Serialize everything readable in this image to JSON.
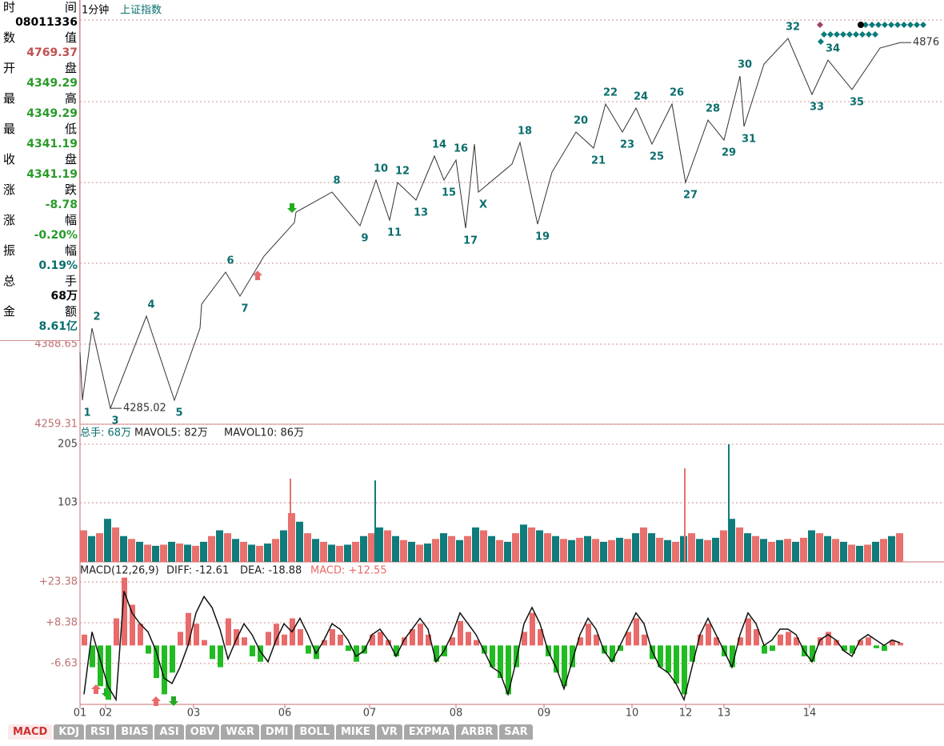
{
  "header": {
    "period": "1分钟",
    "symbol": "上证指数"
  },
  "info_panel": {
    "rows": [
      {
        "label": "时间",
        "value": "08011336",
        "color": "#000000"
      },
      {
        "label": "数值",
        "value": "4769.37",
        "color": "#c05050"
      },
      {
        "label": "开盘",
        "value": "4349.29",
        "color": "#2a9a2a"
      },
      {
        "label": "最高",
        "value": "4349.29",
        "color": "#2a9a2a"
      },
      {
        "label": "最低",
        "value": "4341.19",
        "color": "#2a9a2a"
      },
      {
        "label": "收盘",
        "value": "4341.19",
        "color": "#2a9a2a"
      },
      {
        "label": "涨跌",
        "value": "-8.78",
        "color": "#2a9a2a"
      },
      {
        "label": "涨幅",
        "value": "-0.20%",
        "color": "#2a9a2a"
      },
      {
        "label": "振幅",
        "value": "0.19%",
        "color": "#0a6e6e"
      },
      {
        "label": "总手",
        "value": "68万",
        "color": "#000000"
      },
      {
        "label": "金额",
        "value": "8.61亿",
        "color": "#0a6e6e"
      }
    ]
  },
  "chart_data": [
    {
      "type": "line",
      "color": "#333333",
      "label_color": "#0a6e6e",
      "x": [
        0,
        3,
        15,
        38,
        83,
        118,
        150,
        152,
        182,
        200,
        230,
        268,
        270,
        315,
        350,
        370,
        387,
        397,
        420,
        443,
        455,
        470,
        482,
        493,
        498,
        540,
        550,
        572,
        590,
        620,
        642,
        657,
        678,
        695,
        715,
        740,
        757,
        785,
        805,
        825,
        830,
        855,
        885,
        915,
        935,
        965,
        1000,
        1025
      ],
      "values": [
        4375.7,
        4298.1,
        4414.5,
        4285.02,
        4433.9,
        4298.1,
        4414.5,
        4453.3,
        4505.1,
        4466.3,
        4530.9,
        4585.2,
        4602.0,
        4634.4,
        4580.0,
        4653.8,
        4589.1,
        4649.9,
        4621.5,
        4692.6,
        4653.8,
        4686.1,
        4576.2,
        4712.0,
        4634.4,
        4679.7,
        4714.6,
        4582.7,
        4666.7,
        4731.4,
        4705.5,
        4776.7,
        4731.4,
        4770.2,
        4712.0,
        4776.7,
        4649.9,
        4750.8,
        4718.5,
        4821.9,
        4740.5,
        4841.3,
        4882.7,
        4792.2,
        4847.8,
        4800.0,
        4867.2,
        4876
      ],
      "point_labels": [
        null,
        "1",
        "2",
        "3",
        "4",
        "5",
        null,
        null,
        "6",
        "7",
        null,
        null,
        null,
        "8",
        "9",
        "10",
        "11",
        "12",
        "13",
        "14",
        "15",
        "16",
        "17",
        null,
        "X",
        null,
        "18",
        "19",
        null,
        "20",
        "21",
        "22",
        "23",
        "24",
        "25",
        "26",
        "27",
        "28",
        "29",
        "30",
        "31",
        null,
        "32",
        "33",
        "34",
        "35",
        null,
        null
      ],
      "value_labels": [
        null,
        null,
        null,
        "4285.02",
        null,
        null,
        null,
        null,
        null,
        null,
        null,
        null,
        null,
        null,
        null,
        null,
        null,
        null,
        null,
        null,
        null,
        null,
        null,
        null,
        null,
        null,
        null,
        null,
        null,
        null,
        null,
        null,
        null,
        null,
        null,
        null,
        null,
        null,
        null,
        null,
        null,
        null,
        null,
        null,
        null,
        null,
        null,
        "4876"
      ],
      "xlim": [
        0,
        1080
      ],
      "xticks": [
        {
          "value": 0,
          "label": "01"
        },
        {
          "value": 32,
          "label": "02"
        },
        {
          "value": 142,
          "label": "03"
        },
        {
          "value": 256,
          "label": "06"
        },
        {
          "value": 362,
          "label": "07"
        },
        {
          "value": 470,
          "label": "08"
        },
        {
          "value": 580,
          "label": "09"
        },
        {
          "value": 690,
          "label": "10"
        },
        {
          "value": 757,
          "label": "12"
        },
        {
          "value": 805,
          "label": "13"
        },
        {
          "value": 912,
          "label": "14"
        }
      ],
      "ylim": [
        4259.31,
        4938.35
      ],
      "yticks": [
        4259.31,
        4388.65
      ]
    },
    {
      "type": "bar",
      "header": [
        "总手: 68万",
        "MAVOL5: 82万",
        "MAVOL10: 86万"
      ],
      "colors": [
        "#e8716d",
        "#0e7c7b"
      ],
      "values": [
        55,
        45,
        50,
        75,
        60,
        45,
        40,
        35,
        30,
        28,
        30,
        35,
        32,
        30,
        28,
        35,
        45,
        55,
        50,
        40,
        35,
        30,
        28,
        32,
        40,
        55,
        85,
        70,
        50,
        40,
        35,
        30,
        28,
        30,
        35,
        45,
        50,
        60,
        55,
        45,
        38,
        35,
        30,
        32,
        40,
        50,
        45,
        38,
        45,
        60,
        55,
        45,
        38,
        35,
        50,
        65,
        60,
        55,
        50,
        45,
        40,
        38,
        42,
        45,
        40,
        35,
        38,
        42,
        40,
        50,
        60,
        50,
        42,
        38,
        35,
        45,
        50,
        40,
        38,
        42,
        55,
        75,
        60,
        50,
        45,
        40,
        35,
        38,
        40,
        35,
        42,
        55,
        50,
        45,
        40,
        35,
        30,
        28,
        30,
        35,
        40,
        45,
        50
      ],
      "spike_x": [
        262,
        368,
        755,
        810
      ],
      "spike_values": [
        145,
        142,
        163,
        205
      ],
      "ylim": [
        0,
        237
      ],
      "yticks": [
        103,
        205
      ]
    },
    {
      "type": "bar",
      "header": [
        "MACD(12,26,9)",
        "DIFF: -12.61",
        "DEA: -18.88",
        "MACD: +12.55"
      ],
      "up_color": "#e86a6a",
      "down_color": "#22bb22",
      "line_color": "#111111",
      "values": [
        4,
        -8,
        -15,
        -20,
        10,
        25,
        15,
        8,
        -3,
        -12,
        -18,
        -10,
        5,
        12,
        8,
        2,
        -5,
        -8,
        10,
        6,
        3,
        -4,
        -6,
        5,
        8,
        4,
        10,
        6,
        -3,
        -5,
        2,
        6,
        4,
        -2,
        -6,
        -3,
        4,
        5,
        2,
        -4,
        3,
        6,
        8,
        4,
        -6,
        -4,
        3,
        9,
        5,
        2,
        -3,
        -8,
        -12,
        -18,
        -8,
        5,
        12,
        6,
        -4,
        -10,
        -15,
        -8,
        3,
        8,
        4,
        -3,
        -6,
        -2,
        5,
        10,
        4,
        -5,
        -8,
        -10,
        -14,
        -18,
        -6,
        4,
        8,
        3,
        -4,
        -8,
        3,
        10,
        6,
        -3,
        -2,
        4,
        5,
        3,
        -4,
        -6,
        3,
        5,
        2,
        -2,
        -3,
        2,
        3,
        -1,
        -2,
        2,
        1
      ],
      "diff": [
        -18,
        5,
        -5,
        -15,
        -20,
        20,
        12,
        8,
        5,
        -2,
        -12,
        -14,
        -8,
        0,
        12,
        18,
        14,
        6,
        -5,
        2,
        8,
        4,
        -2,
        -6,
        2,
        8,
        5,
        10,
        4,
        -3,
        2,
        8,
        6,
        2,
        -4,
        -2,
        4,
        6,
        2,
        -4,
        2,
        6,
        10,
        6,
        -6,
        -2,
        4,
        12,
        8,
        4,
        -2,
        -8,
        -10,
        -18,
        -6,
        8,
        14,
        8,
        -2,
        -8,
        -16,
        -6,
        4,
        10,
        6,
        -2,
        -6,
        0,
        6,
        12,
        8,
        -2,
        -8,
        -10,
        -14,
        -20,
        -8,
        4,
        10,
        4,
        -2,
        -8,
        4,
        12,
        8,
        0,
        2,
        6,
        6,
        4,
        -2,
        -6,
        2,
        4,
        2,
        -2,
        -4,
        2,
        4,
        2,
        0,
        2,
        1
      ],
      "ylim": [
        -21.7,
        29.6
      ],
      "yticks": [
        {
          "value": 23.38,
          "label": "+23.38"
        },
        {
          "value": 8.38,
          "label": "+8.38"
        },
        -6.63
      ]
    }
  ],
  "tabs": [
    "MACD",
    "KDJ",
    "RSI",
    "BIAS",
    "ASI",
    "OBV",
    "W&R",
    "DMI",
    "BOLL",
    "MIKE",
    "VR",
    "EXPMA",
    "ARBR",
    "SAR"
  ]
}
